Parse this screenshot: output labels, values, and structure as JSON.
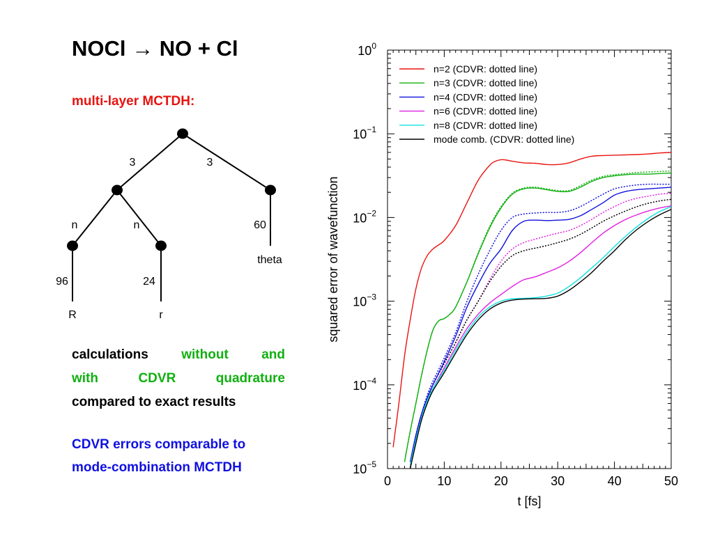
{
  "slide": {
    "title": "NOCl → NO + Cl",
    "method_label": "multi-layer MCTDH:",
    "description": {
      "line1_words": [
        "calculations",
        "without",
        "and"
      ],
      "line2_words": [
        "with",
        "CDVR",
        "quadrature"
      ],
      "line3": "compared to exact results"
    },
    "conclusion": {
      "line1": "CDVR errors comparable to",
      "line2": "mode-combination MCTDH"
    }
  },
  "colors": {
    "red": "#e8140f",
    "green": "#10b010",
    "black": "#000000",
    "blue": "#1010e0"
  },
  "tree": {
    "edge_labels": {
      "root_left": "3",
      "root_right": "3",
      "mid_left": "n",
      "mid_right": "n",
      "right_leaf": "60",
      "leaf_R": "96",
      "leaf_r": "24"
    },
    "coordinates": {
      "R": "R",
      "r": "r",
      "theta": "theta"
    }
  },
  "chart_data": {
    "type": "line",
    "xlabel": "t [fs]",
    "ylabel": "squared error of wavefunction",
    "xlim": [
      0,
      50
    ],
    "ylim": [
      1e-05,
      1
    ],
    "yscale": "log",
    "x_ticks": [
      0,
      10,
      20,
      30,
      40,
      50
    ],
    "y_ticks": [
      {
        "value": 1e-05,
        "base": "10",
        "exp": "−5"
      },
      {
        "value": 0.0001,
        "base": "10",
        "exp": "−4"
      },
      {
        "value": 0.001,
        "base": "10",
        "exp": "−3"
      },
      {
        "value": 0.01,
        "base": "10",
        "exp": "−2"
      },
      {
        "value": 0.1,
        "base": "10",
        "exp": "−1"
      },
      {
        "value": 1,
        "base": "10",
        "exp": "0"
      }
    ],
    "legend_position": "top-left",
    "grid": false,
    "series": [
      {
        "name": "n=2 (CDVR: dotted line)",
        "color": "#e8140f",
        "x": [
          1,
          2,
          3,
          4,
          5,
          6,
          7,
          8,
          9,
          10,
          12,
          14,
          16,
          18,
          19,
          20,
          21,
          22,
          24,
          26,
          28,
          30,
          32,
          34,
          36,
          38,
          40,
          42,
          44,
          46,
          48,
          50
        ],
        "y": [
          1.8e-05,
          6e-05,
          0.00022,
          0.0006,
          0.0014,
          0.0025,
          0.0035,
          0.0042,
          0.0047,
          0.0053,
          0.008,
          0.015,
          0.028,
          0.042,
          0.047,
          0.049,
          0.0485,
          0.047,
          0.045,
          0.0445,
          0.043,
          0.043,
          0.045,
          0.05,
          0.054,
          0.055,
          0.0555,
          0.056,
          0.0565,
          0.0575,
          0.059,
          0.06
        ]
      },
      {
        "name": "n=3 (CDVR: dotted line)",
        "color": "#10b010",
        "x": [
          3,
          4,
          5,
          6,
          7,
          8,
          9,
          10,
          11,
          12,
          14,
          16,
          18,
          20,
          22,
          24,
          26,
          28,
          30,
          32,
          34,
          36,
          38,
          40,
          42,
          44,
          46,
          48,
          50
        ],
        "y": [
          1.2e-05,
          2.8e-05,
          6e-05,
          0.00013,
          0.00026,
          0.00045,
          0.00058,
          0.00062,
          0.0007,
          0.00085,
          0.0017,
          0.0037,
          0.0075,
          0.013,
          0.019,
          0.022,
          0.0225,
          0.0215,
          0.0205,
          0.0205,
          0.023,
          0.027,
          0.03,
          0.0315,
          0.0325,
          0.033,
          0.033,
          0.0335,
          0.034
        ]
      },
      {
        "name": "n=4 (CDVR: dotted line)",
        "color": "#1010e0",
        "x": [
          4,
          5,
          6,
          7,
          8,
          10,
          12,
          14,
          16,
          18,
          20,
          22,
          24,
          26,
          28,
          30,
          32,
          34,
          36,
          38,
          40,
          42,
          44,
          46,
          48,
          50
        ],
        "y": [
          1.2e-05,
          2.5e-05,
          4.5e-05,
          7e-05,
          0.0001,
          0.00019,
          0.00038,
          0.00085,
          0.0016,
          0.0028,
          0.0042,
          0.007,
          0.009,
          0.0093,
          0.0092,
          0.0093,
          0.0095,
          0.0105,
          0.0125,
          0.015,
          0.0185,
          0.0205,
          0.0215,
          0.022,
          0.0225,
          0.023
        ]
      },
      {
        "name": "n=6 (CDVR: dotted line)",
        "color": "#e020e0",
        "x": [
          4,
          5,
          6,
          7,
          8,
          10,
          12,
          14,
          16,
          18,
          20,
          22,
          24,
          26,
          28,
          30,
          32,
          34,
          36,
          38,
          40,
          42,
          44,
          46,
          48,
          50
        ],
        "y": [
          1.1e-05,
          2.2e-05,
          4e-05,
          6.5e-05,
          9e-05,
          0.00016,
          0.00028,
          0.00047,
          0.0007,
          0.00095,
          0.0012,
          0.0015,
          0.0018,
          0.00195,
          0.0022,
          0.0025,
          0.003,
          0.0038,
          0.005,
          0.0065,
          0.008,
          0.0095,
          0.0108,
          0.012,
          0.013,
          0.0138
        ]
      },
      {
        "name": "n=8 (CDVR: dotted line)",
        "color": "#10e0e0",
        "x": [
          4,
          5,
          6,
          7,
          8,
          10,
          12,
          14,
          16,
          18,
          20,
          22,
          24,
          26,
          28,
          30,
          32,
          34,
          36,
          38,
          40,
          42,
          44,
          46,
          48,
          50
        ],
        "y": [
          1.1e-05,
          2.2e-05,
          4e-05,
          6.5e-05,
          9e-05,
          0.00015,
          0.00026,
          0.00043,
          0.00065,
          0.00085,
          0.001,
          0.00107,
          0.00108,
          0.0011,
          0.00115,
          0.00125,
          0.0015,
          0.0019,
          0.0025,
          0.0033,
          0.0045,
          0.006,
          0.0078,
          0.0098,
          0.0118,
          0.0135
        ]
      },
      {
        "name": "mode comb.  (CDVR: dotted line)",
        "color": "#000000",
        "x": [
          4,
          5,
          6,
          7,
          8,
          10,
          12,
          14,
          16,
          18,
          20,
          22,
          24,
          26,
          28,
          30,
          32,
          34,
          36,
          38,
          40,
          42,
          44,
          46,
          48,
          50
        ],
        "y": [
          1e-05,
          2e-05,
          3.8e-05,
          6e-05,
          8.5e-05,
          0.00014,
          0.00024,
          0.0004,
          0.0006,
          0.0008,
          0.00095,
          0.00103,
          0.00106,
          0.00107,
          0.00108,
          0.00115,
          0.00135,
          0.0017,
          0.0022,
          0.003,
          0.004,
          0.0055,
          0.0072,
          0.009,
          0.0108,
          0.0125
        ]
      }
    ],
    "dotted_series": [
      {
        "of": "n=3",
        "color": "#10b010",
        "x": [
          3,
          4,
          5,
          6,
          7,
          8,
          9,
          10,
          11,
          12,
          14,
          16,
          18,
          20,
          22,
          24,
          26,
          28,
          30,
          32,
          34,
          36,
          38,
          40,
          42,
          44,
          46,
          48,
          50
        ],
        "y": [
          1.2e-05,
          2.8e-05,
          6e-05,
          0.00013,
          0.00026,
          0.00045,
          0.00058,
          0.00062,
          0.0007,
          0.00085,
          0.0017,
          0.0038,
          0.0078,
          0.0135,
          0.0195,
          0.0225,
          0.023,
          0.022,
          0.021,
          0.021,
          0.024,
          0.028,
          0.031,
          0.0325,
          0.0335,
          0.0345,
          0.035,
          0.0355,
          0.036
        ]
      },
      {
        "of": "n=4",
        "color": "#1010e0",
        "x": [
          4,
          5,
          6,
          7,
          8,
          10,
          12,
          14,
          16,
          18,
          20,
          22,
          24,
          26,
          28,
          30,
          32,
          34,
          36,
          38,
          40,
          42,
          44,
          46,
          48,
          50
        ],
        "y": [
          1.2e-05,
          2.5e-05,
          4.5e-05,
          7.5e-05,
          0.00011,
          0.00021,
          0.00042,
          0.001,
          0.0021,
          0.004,
          0.007,
          0.01,
          0.011,
          0.0113,
          0.0115,
          0.0115,
          0.012,
          0.0135,
          0.016,
          0.019,
          0.022,
          0.0235,
          0.0245,
          0.025,
          0.025,
          0.025
        ]
      },
      {
        "of": "n=6",
        "color": "#e020e0",
        "x": [
          4,
          5,
          6,
          7,
          8,
          10,
          12,
          14,
          16,
          18,
          20,
          22,
          24,
          26,
          28,
          30,
          32,
          34,
          36,
          38,
          40,
          42,
          44,
          46,
          48,
          50
        ],
        "y": [
          1.1e-05,
          2.2e-05,
          4e-05,
          6.5e-05,
          0.0001,
          0.00018,
          0.00032,
          0.0006,
          0.001,
          0.0018,
          0.003,
          0.0042,
          0.005,
          0.0055,
          0.006,
          0.0065,
          0.007,
          0.008,
          0.0095,
          0.0115,
          0.0135,
          0.0155,
          0.017,
          0.018,
          0.019,
          0.0195
        ]
      },
      {
        "of": "mode comb.",
        "color": "#000000",
        "x": [
          4,
          5,
          6,
          7,
          8,
          10,
          12,
          14,
          16,
          18,
          20,
          22,
          24,
          26,
          28,
          30,
          32,
          34,
          36,
          38,
          40,
          42,
          44,
          46,
          48,
          50
        ],
        "y": [
          1.1e-05,
          2.2e-05,
          4e-05,
          6.5e-05,
          0.0001,
          0.00018,
          0.00032,
          0.0006,
          0.001,
          0.0017,
          0.0026,
          0.0035,
          0.004,
          0.0043,
          0.0046,
          0.005,
          0.0055,
          0.0063,
          0.0075,
          0.009,
          0.0105,
          0.012,
          0.0135,
          0.0148,
          0.0158,
          0.0165
        ]
      }
    ]
  }
}
